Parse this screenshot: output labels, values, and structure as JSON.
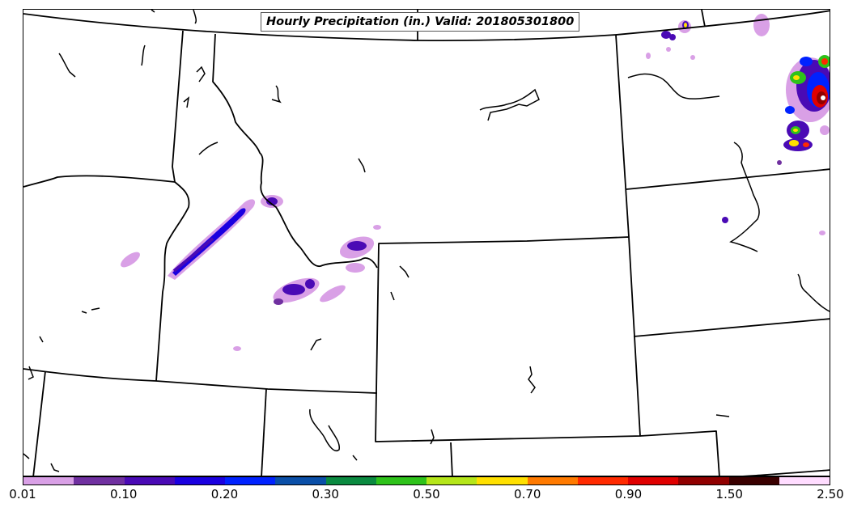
{
  "title": "Hourly Precipitation (in.) Valid: 201805301800",
  "legend": {
    "colors": [
      "#d9a0e6",
      "#7030a0",
      "#4a0ab5",
      "#1a00e0",
      "#0022ff",
      "#0a4fa8",
      "#0a8a40",
      "#2ec21a",
      "#b5e61a",
      "#ffe000",
      "#ff7a00",
      "#ff2a00",
      "#e00000",
      "#900000",
      "#3a0000",
      "#ffdcff"
    ],
    "tick_labels": [
      "0.01",
      "0.10",
      "0.20",
      "0.30",
      "0.50",
      "0.70",
      "0.90",
      "1.50",
      "2.50"
    ]
  }
}
